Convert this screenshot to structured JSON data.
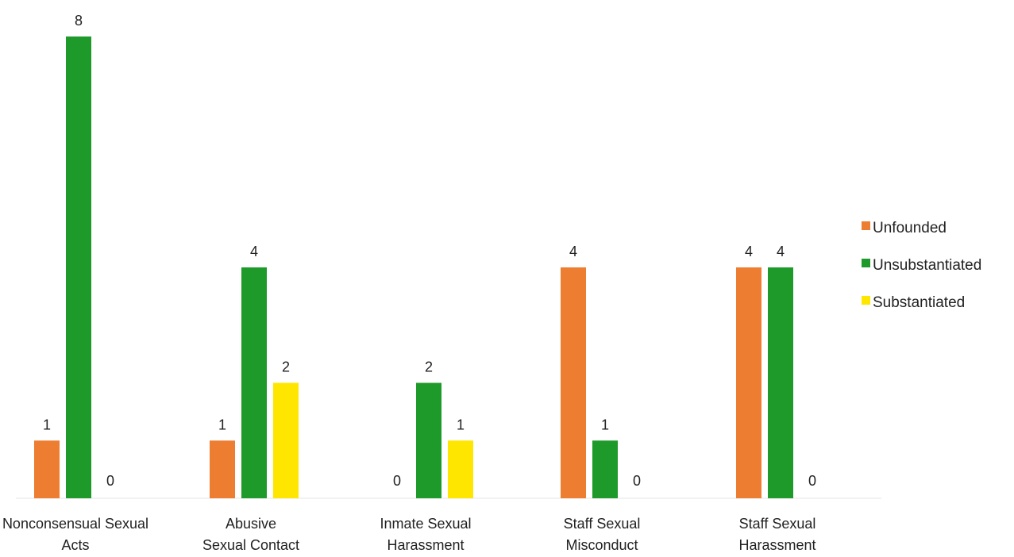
{
  "chart_data": {
    "type": "bar",
    "categories": [
      [
        "Nonconsensual Sexual",
        "Acts"
      ],
      [
        "Abusive",
        "Sexual Contact"
      ],
      [
        "Inmate Sexual",
        "Harassment"
      ],
      [
        "Staff Sexual",
        "Misconduct"
      ],
      [
        "Staff Sexual",
        "Harassment"
      ]
    ],
    "series": [
      {
        "name": "Unfounded",
        "color": "#ED7D31",
        "values": [
          1,
          1,
          0,
          4,
          4
        ]
      },
      {
        "name": "Unsubstantiated",
        "color": "#1E9A2A",
        "values": [
          8,
          4,
          2,
          1,
          4
        ]
      },
      {
        "name": "Substantiated",
        "color": "#FFE600",
        "values": [
          0,
          2,
          1,
          0,
          0
        ]
      }
    ],
    "ylim": [
      0,
      8
    ],
    "grid": false,
    "legend": "right"
  }
}
